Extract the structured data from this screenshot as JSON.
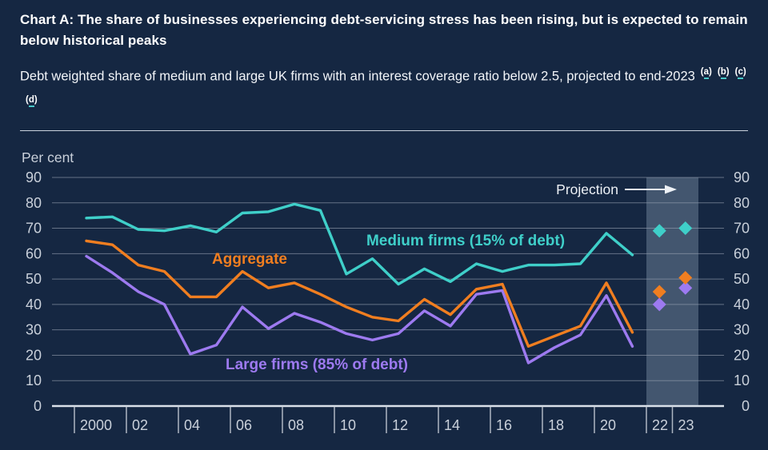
{
  "header": {
    "title": "Chart A: The share of businesses experiencing debt-servicing stress has been rising, but is expected to remain below historical peaks",
    "subtitle": "Debt weighted share of medium and large UK firms with an interest coverage ratio below 2.5, projected to end-2023",
    "footnotes": [
      "a",
      "b",
      "c",
      "d"
    ]
  },
  "colors": {
    "background": "#152742",
    "medium_firms": "#3FCFC9",
    "aggregate": "#F07E20",
    "large_firms": "#9D7AF0",
    "projection_band": "#9FB2C6",
    "gridline": "#96A0B0",
    "zero_axis": "#D9E0E9",
    "axis_text": "#C9D0DA",
    "projection_text": "#EDF1F6",
    "footnote_underline": "#49C8C8"
  },
  "chart_data": {
    "type": "line",
    "ylabel": "Per cent",
    "ylim": [
      0,
      90
    ],
    "yticks": [
      0,
      10,
      20,
      30,
      40,
      50,
      60,
      70,
      80,
      90
    ],
    "grid": true,
    "x_ticks": [
      {
        "year": 2000,
        "label": "2000"
      },
      {
        "year": 2002,
        "label": "02"
      },
      {
        "year": 2004,
        "label": "04"
      },
      {
        "year": 2006,
        "label": "06"
      },
      {
        "year": 2008,
        "label": "08"
      },
      {
        "year": 2010,
        "label": "10"
      },
      {
        "year": 2012,
        "label": "12"
      },
      {
        "year": 2014,
        "label": "14"
      },
      {
        "year": 2016,
        "label": "16"
      },
      {
        "year": 2018,
        "label": "18"
      },
      {
        "year": 2020,
        "label": "20"
      },
      {
        "year": 2022,
        "label": "22"
      },
      {
        "year": 2023,
        "label": "23"
      }
    ],
    "years": [
      2000,
      2001,
      2002,
      2003,
      2004,
      2005,
      2006,
      2007,
      2008,
      2009,
      2010,
      2011,
      2012,
      2013,
      2014,
      2015,
      2016,
      2017,
      2018,
      2019,
      2020,
      2021
    ],
    "series": [
      {
        "id": "medium-firms",
        "name": "Medium firms (15% of debt)",
        "color": "#3FCFC9",
        "values": [
          74,
          74.5,
          69.5,
          69,
          71,
          68.5,
          76,
          76.5,
          79.5,
          77,
          52,
          58,
          48,
          54,
          49,
          56,
          53,
          55.5,
          55.5,
          56,
          68,
          59.5
        ],
        "projection": {
          "years": [
            2022,
            2023
          ],
          "values": [
            69,
            70
          ]
        }
      },
      {
        "id": "aggregate",
        "name": "Aggregate",
        "color": "#F07E20",
        "values": [
          65,
          63.5,
          55.5,
          53,
          43,
          43,
          53,
          46.5,
          48.5,
          44,
          39,
          35,
          33.5,
          42,
          36,
          46,
          48,
          23.5,
          27.5,
          31.5,
          48.5,
          29
        ],
        "projection": {
          "years": [
            2022,
            2023
          ],
          "values": [
            45,
            50.5
          ]
        }
      },
      {
        "id": "large-firms",
        "name": "Large firms (85% of debt)",
        "color": "#9D7AF0",
        "values": [
          59,
          52.5,
          45,
          40,
          20.5,
          24,
          39,
          30.5,
          36.5,
          33,
          28.5,
          26,
          28.5,
          37.5,
          31.5,
          44,
          45.5,
          17,
          23,
          28,
          43.5,
          23.5
        ],
        "projection": {
          "years": [
            2022,
            2023
          ],
          "values": [
            40,
            46.5
          ]
        }
      }
    ],
    "projection": {
      "label": "Projection",
      "band_years": [
        2022,
        2023
      ]
    }
  }
}
